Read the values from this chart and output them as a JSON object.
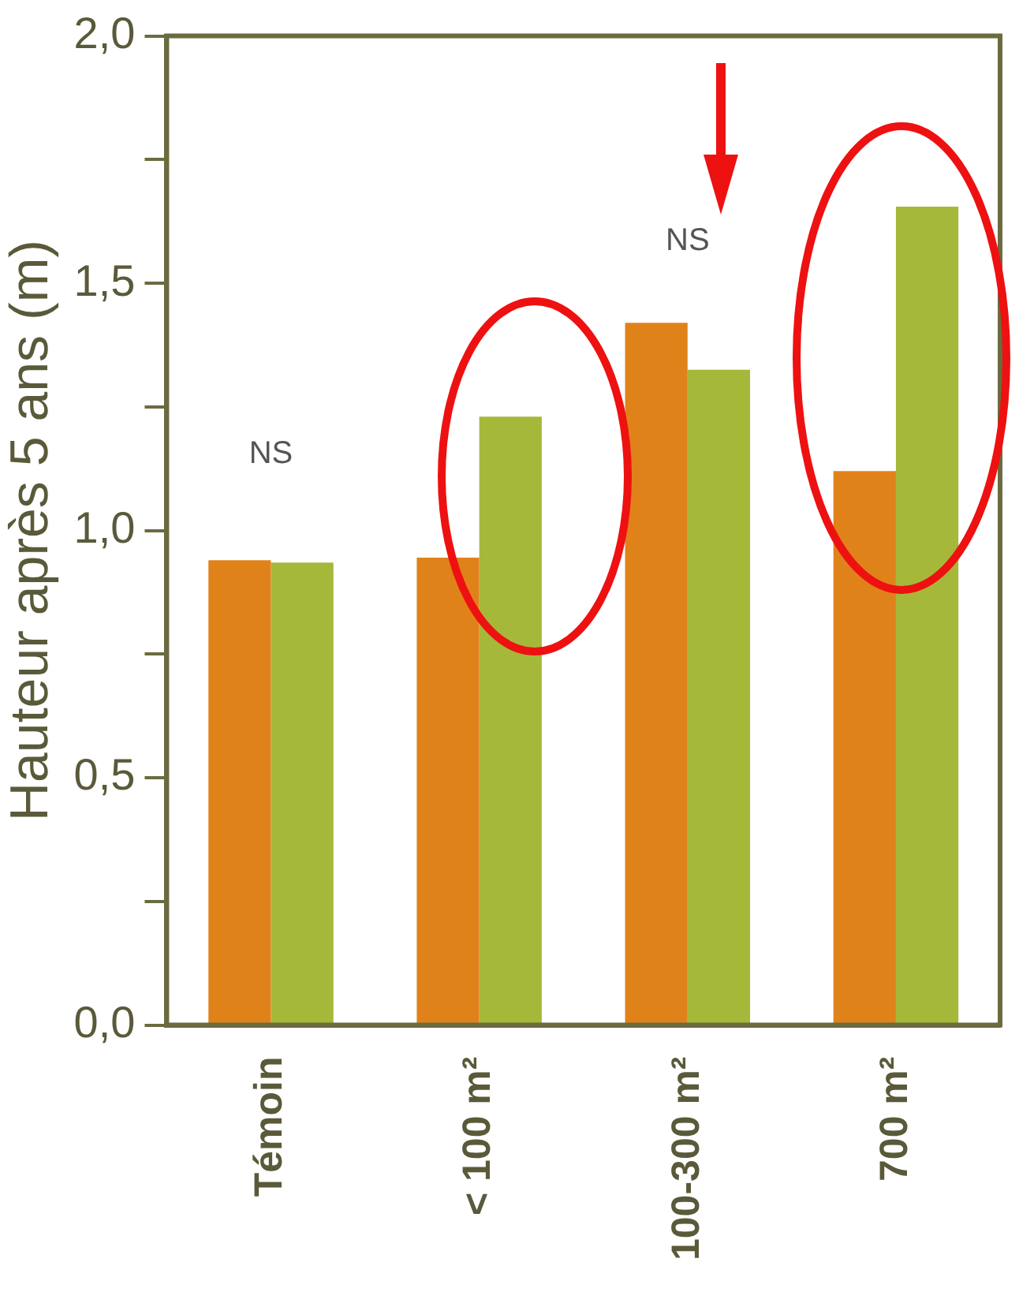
{
  "chart_data": {
    "type": "bar",
    "ylabel": "Hauteur après 5 ans (m)",
    "categories": [
      "Témoin",
      "< 100 m²",
      "100-300 m²",
      "700 m²"
    ],
    "series": [
      {
        "color": "#e0821a",
        "values": [
          0.94,
          0.945,
          1.42,
          1.12
        ]
      },
      {
        "color": "#a6b83a",
        "values": [
          0.935,
          1.23,
          1.325,
          1.655
        ]
      }
    ],
    "ylim": [
      0,
      2
    ],
    "yticks": [
      {
        "value": 0,
        "label": "0,0"
      },
      {
        "value": 0.25,
        "label": null
      },
      {
        "value": 0.5,
        "label": "0,5"
      },
      {
        "value": 0.75,
        "label": null
      },
      {
        "value": 1,
        "label": "1,0"
      },
      {
        "value": 1.25,
        "label": null
      },
      {
        "value": 1.5,
        "label": "1,5"
      },
      {
        "value": 1.75,
        "label": null
      },
      {
        "value": 2,
        "label": "2,0"
      }
    ],
    "grid": false,
    "legend": false,
    "annotations": [
      "NS",
      "NS"
    ]
  }
}
